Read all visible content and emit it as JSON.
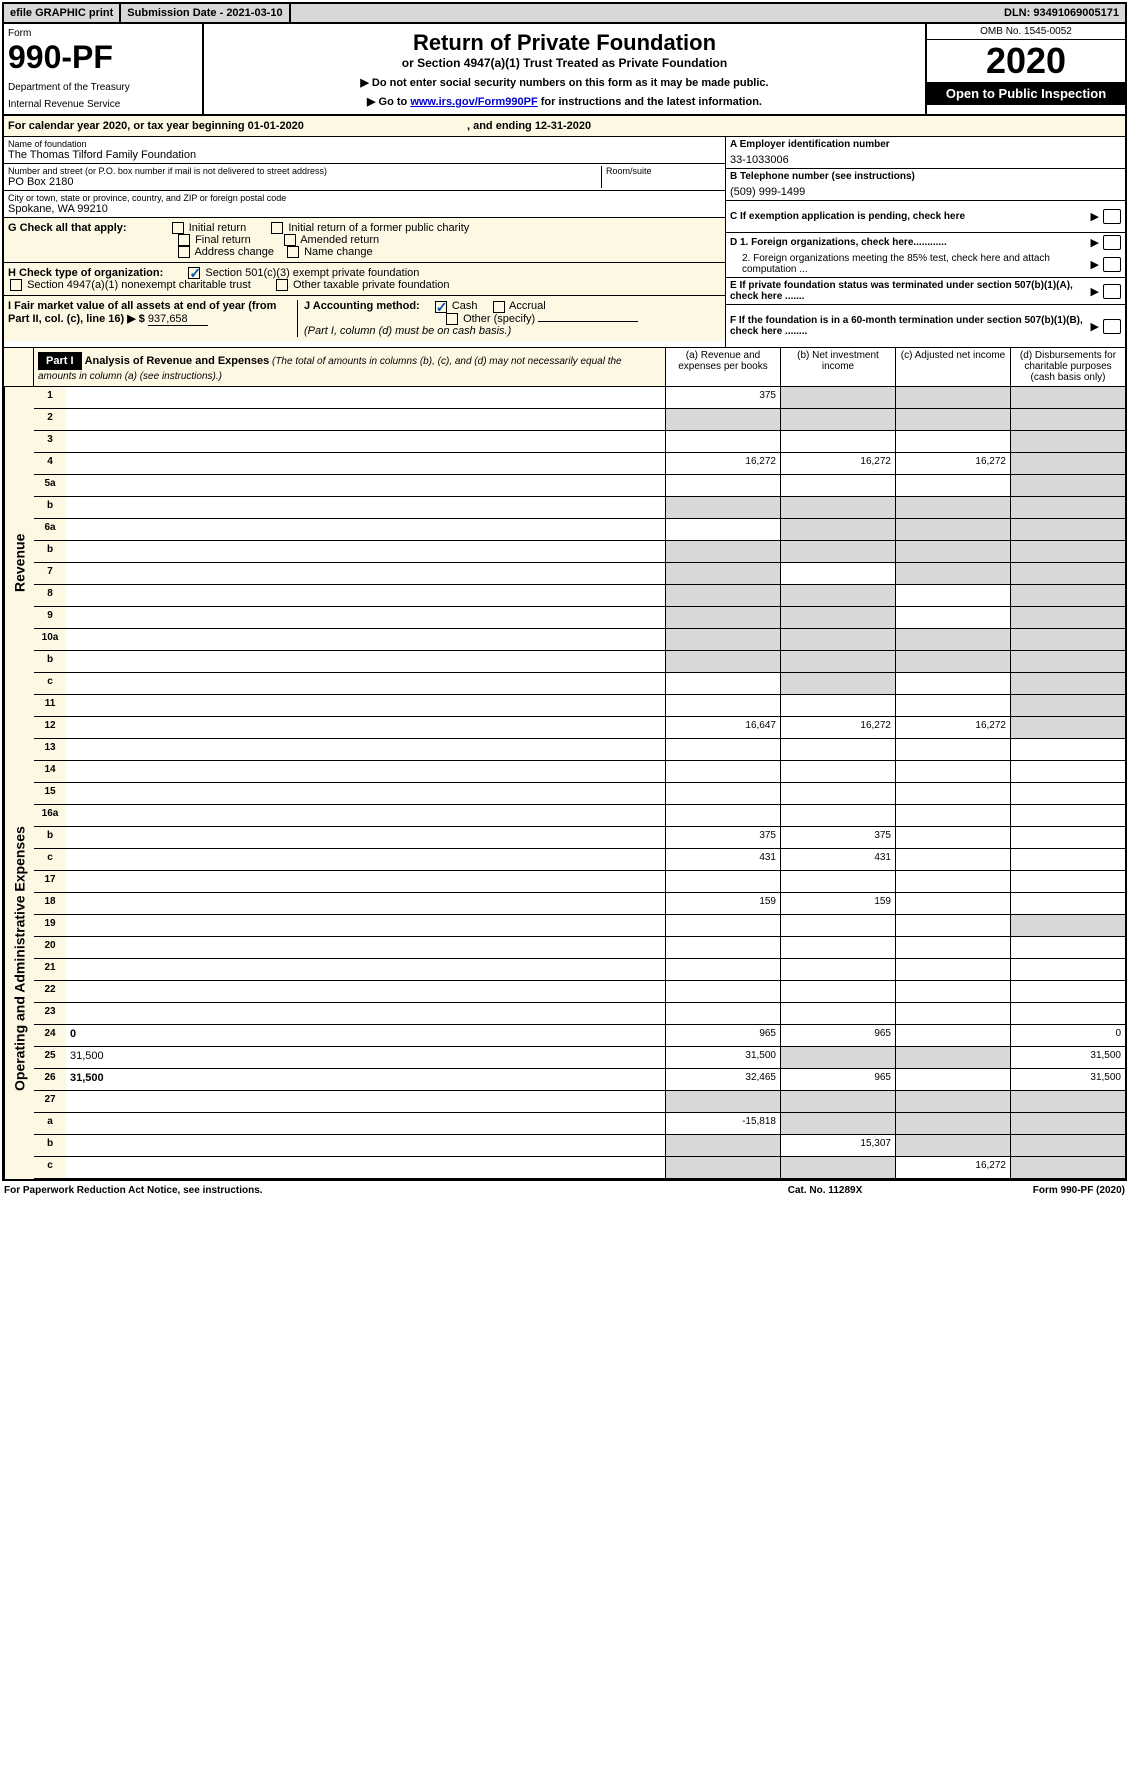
{
  "topbar": {
    "efile": "efile GRAPHIC print",
    "sub_date_label": "Submission Date - 2021-03-10",
    "dln": "DLN: 93491069005171"
  },
  "header": {
    "form_label": "Form",
    "form_number": "990-PF",
    "dept1": "Department of the Treasury",
    "dept2": "Internal Revenue Service",
    "title": "Return of Private Foundation",
    "subtitle": "or Section 4947(a)(1) Trust Treated as Private Foundation",
    "note1": "▶ Do not enter social security numbers on this form as it may be made public.",
    "note2_pre": "▶ Go to ",
    "note2_link": "www.irs.gov/Form990PF",
    "note2_post": " for instructions and the latest information.",
    "omb": "OMB No. 1545-0052",
    "year": "2020",
    "open": "Open to Public Inspection"
  },
  "cal_year": {
    "text": "For calendar year 2020, or tax year beginning 01-01-2020",
    "ending": ", and ending 12-31-2020"
  },
  "entity": {
    "name_label": "Name of foundation",
    "name": "The Thomas Tilford Family Foundation",
    "addr_label": "Number and street (or P.O. box number if mail is not delivered to street address)",
    "addr": "PO Box 2180",
    "room_label": "Room/suite",
    "city_label": "City or town, state or province, country, and ZIP or foreign postal code",
    "city": "Spokane, WA  99210",
    "ein_label": "A Employer identification number",
    "ein": "33-1033006",
    "phone_label": "B Telephone number (see instructions)",
    "phone": "(509) 999-1499",
    "c_label": "C If exemption application is pending, check here",
    "d1": "D 1. Foreign organizations, check here............",
    "d2": "2. Foreign organizations meeting the 85% test, check here and attach computation ...",
    "e_label": "E If private foundation status was terminated under section 507(b)(1)(A), check here .......",
    "f_label": "F If the foundation is in a 60-month termination under section 507(b)(1)(B), check here ........"
  },
  "g": {
    "label": "G Check all that apply:",
    "opts": [
      "Initial return",
      "Initial return of a former public charity",
      "Final return",
      "Amended return",
      "Address change",
      "Name change"
    ]
  },
  "h": {
    "label": "H Check type of organization:",
    "opt1": "Section 501(c)(3) exempt private foundation",
    "opt2": "Section 4947(a)(1) nonexempt charitable trust",
    "opt3": "Other taxable private foundation"
  },
  "i": {
    "label": "I Fair market value of all assets at end of year (from Part II, col. (c), line 16) ▶ $",
    "value": "937,658"
  },
  "j": {
    "label": "J Accounting method:",
    "cash": "Cash",
    "accrual": "Accrual",
    "other": "Other (specify)",
    "note": "(Part I, column (d) must be on cash basis.)"
  },
  "part1": {
    "label": "Part I",
    "title": "Analysis of Revenue and Expenses",
    "title_note": " (The total of amounts in columns (b), (c), and (d) may not necessarily equal the amounts in column (a) (see instructions).)",
    "col_a": "(a)   Revenue and expenses per books",
    "col_b": "(b)  Net investment income",
    "col_c": "(c)  Adjusted net income",
    "col_d": "(d)  Disbursements for charitable purposes (cash basis only)"
  },
  "sides": {
    "revenue": "Revenue",
    "expenses": "Operating and Administrative Expenses"
  },
  "lines": [
    {
      "n": "1",
      "d": "",
      "a": "375",
      "b": "",
      "c": "",
      "sb": true,
      "sc": true,
      "sd": true
    },
    {
      "n": "2",
      "d": "",
      "a": "",
      "b": "",
      "c": "",
      "sa": true,
      "sb": true,
      "sc": true,
      "sd": true,
      "bold_not": true
    },
    {
      "n": "3",
      "d": "",
      "a": "",
      "b": "",
      "c": "",
      "sd": true
    },
    {
      "n": "4",
      "d": "",
      "a": "16,272",
      "b": "16,272",
      "c": "16,272",
      "sd": true
    },
    {
      "n": "5a",
      "d": "",
      "a": "",
      "b": "",
      "c": "",
      "sd": true
    },
    {
      "n": "b",
      "d": "",
      "a": "",
      "b": "",
      "c": "",
      "sa": true,
      "sb": true,
      "sc": true,
      "sd": true
    },
    {
      "n": "6a",
      "d": "",
      "a": "",
      "b": "",
      "c": "",
      "sb": true,
      "sc": true,
      "sd": true
    },
    {
      "n": "b",
      "d": "",
      "a": "",
      "b": "",
      "c": "",
      "sa": true,
      "sb": true,
      "sc": true,
      "sd": true
    },
    {
      "n": "7",
      "d": "",
      "a": "",
      "b": "",
      "c": "",
      "sa": true,
      "sc": true,
      "sd": true
    },
    {
      "n": "8",
      "d": "",
      "a": "",
      "b": "",
      "c": "",
      "sa": true,
      "sb": true,
      "sd": true
    },
    {
      "n": "9",
      "d": "",
      "a": "",
      "b": "",
      "c": "",
      "sa": true,
      "sb": true,
      "sd": true
    },
    {
      "n": "10a",
      "d": "",
      "a": "",
      "b": "",
      "c": "",
      "sa": true,
      "sb": true,
      "sc": true,
      "sd": true
    },
    {
      "n": "b",
      "d": "",
      "a": "",
      "b": "",
      "c": "",
      "sa": true,
      "sb": true,
      "sc": true,
      "sd": true
    },
    {
      "n": "c",
      "d": "",
      "a": "",
      "b": "",
      "c": "",
      "sb": true,
      "sd": true
    },
    {
      "n": "11",
      "d": "",
      "a": "",
      "b": "",
      "c": "",
      "sd": true
    },
    {
      "n": "12",
      "d": "",
      "a": "16,647",
      "b": "16,272",
      "c": "16,272",
      "sd": true,
      "bold": true
    }
  ],
  "exp_lines": [
    {
      "n": "13",
      "d": "",
      "a": "",
      "b": "",
      "c": ""
    },
    {
      "n": "14",
      "d": "",
      "a": "",
      "b": "",
      "c": ""
    },
    {
      "n": "15",
      "d": "",
      "a": "",
      "b": "",
      "c": ""
    },
    {
      "n": "16a",
      "d": "",
      "a": "",
      "b": "",
      "c": ""
    },
    {
      "n": "b",
      "d": "",
      "a": "375",
      "b": "375",
      "c": ""
    },
    {
      "n": "c",
      "d": "",
      "a": "431",
      "b": "431",
      "c": ""
    },
    {
      "n": "17",
      "d": "",
      "a": "",
      "b": "",
      "c": ""
    },
    {
      "n": "18",
      "d": "",
      "a": "159",
      "b": "159",
      "c": ""
    },
    {
      "n": "19",
      "d": "",
      "a": "",
      "b": "",
      "c": "",
      "sd": true
    },
    {
      "n": "20",
      "d": "",
      "a": "",
      "b": "",
      "c": ""
    },
    {
      "n": "21",
      "d": "",
      "a": "",
      "b": "",
      "c": ""
    },
    {
      "n": "22",
      "d": "",
      "a": "",
      "b": "",
      "c": ""
    },
    {
      "n": "23",
      "d": "",
      "a": "",
      "b": "",
      "c": ""
    },
    {
      "n": "24",
      "d": "0",
      "a": "965",
      "b": "965",
      "c": "",
      "bold": true
    },
    {
      "n": "25",
      "d": "31,500",
      "a": "31,500",
      "b": "",
      "c": "",
      "sb": true,
      "sc": true
    },
    {
      "n": "26",
      "d": "31,500",
      "a": "32,465",
      "b": "965",
      "c": "",
      "bold": true
    },
    {
      "n": "27",
      "d": "",
      "a": "",
      "b": "",
      "c": "",
      "sa": true,
      "sb": true,
      "sc": true,
      "sd": true
    },
    {
      "n": "a",
      "d": "",
      "a": "-15,818",
      "b": "",
      "c": "",
      "sb": true,
      "sc": true,
      "sd": true,
      "bold": true
    },
    {
      "n": "b",
      "d": "",
      "a": "",
      "b": "15,307",
      "c": "",
      "sa": true,
      "sc": true,
      "sd": true,
      "bold": true
    },
    {
      "n": "c",
      "d": "",
      "a": "",
      "b": "",
      "c": "16,272",
      "sa": true,
      "sb": true,
      "sd": true,
      "bold": true
    }
  ],
  "footer": {
    "left": "For Paperwork Reduction Act Notice, see instructions.",
    "mid": "Cat. No. 11289X",
    "right": "Form 990-PF (2020)"
  }
}
